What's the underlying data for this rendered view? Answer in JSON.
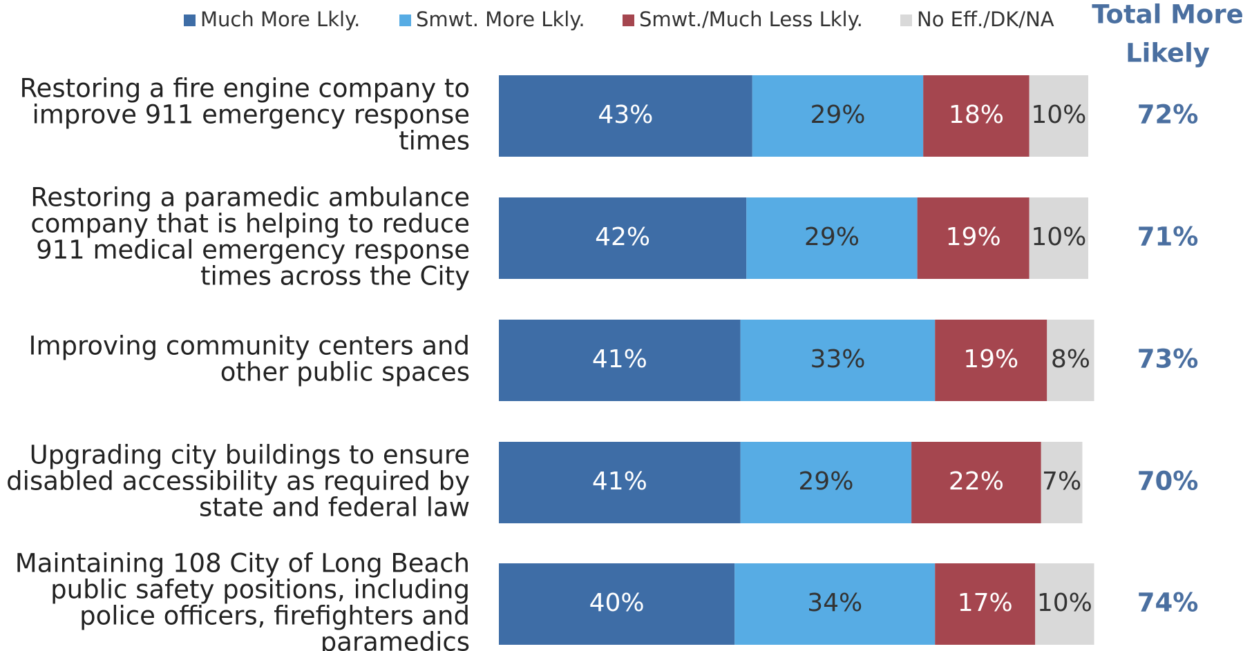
{
  "chart_data": {
    "type": "stacked-bar-horizontal",
    "categories": [
      [
        "Restoring a fire engine company to",
        "improve 911 emergency response",
        "times"
      ],
      [
        "Restoring a paramedic ambulance",
        "company that is helping to reduce",
        "911 medical emergency response",
        "times across the City"
      ],
      [
        "Improving community centers and",
        "other public spaces"
      ],
      [
        "Upgrading city buildings to ensure",
        "disabled accessibility as required by",
        "state and federal law"
      ],
      [
        "Maintaining 108 City of Long Beach",
        "public safety positions, including",
        "police officers, firefighters and",
        "paramedics"
      ]
    ],
    "series": [
      {
        "name": "Much More Lkly.",
        "color": "#3e6da6",
        "values": [
          43,
          42,
          41,
          41,
          40
        ],
        "value_labels": [
          "43%",
          "42%",
          "41%",
          "41%",
          "40%"
        ]
      },
      {
        "name": "Smwt. More Lkly.",
        "color": "#57ace4",
        "values": [
          29,
          29,
          33,
          29,
          34
        ],
        "value_labels": [
          "29%",
          "29%",
          "33%",
          "29%",
          "34%"
        ]
      },
      {
        "name": "Smwt./Much Less Lkly.",
        "color": "#a5464f",
        "values": [
          18,
          19,
          19,
          22,
          17
        ],
        "value_labels": [
          "18%",
          "19%",
          "19%",
          "22%",
          "17%"
        ]
      },
      {
        "name": "No Eff./DK/NA",
        "color": "#d9d9d9",
        "values": [
          10,
          10,
          8,
          7,
          10
        ],
        "value_labels": [
          "10%",
          "10%",
          "8%",
          "7%",
          "10%"
        ]
      }
    ],
    "xlim": [
      0,
      100
    ],
    "totals": {
      "title": [
        "Total More",
        "Likely"
      ],
      "values": [
        72,
        71,
        73,
        70,
        74
      ],
      "value_labels": [
        "72%",
        "71%",
        "73%",
        "70%",
        "74%"
      ]
    }
  }
}
